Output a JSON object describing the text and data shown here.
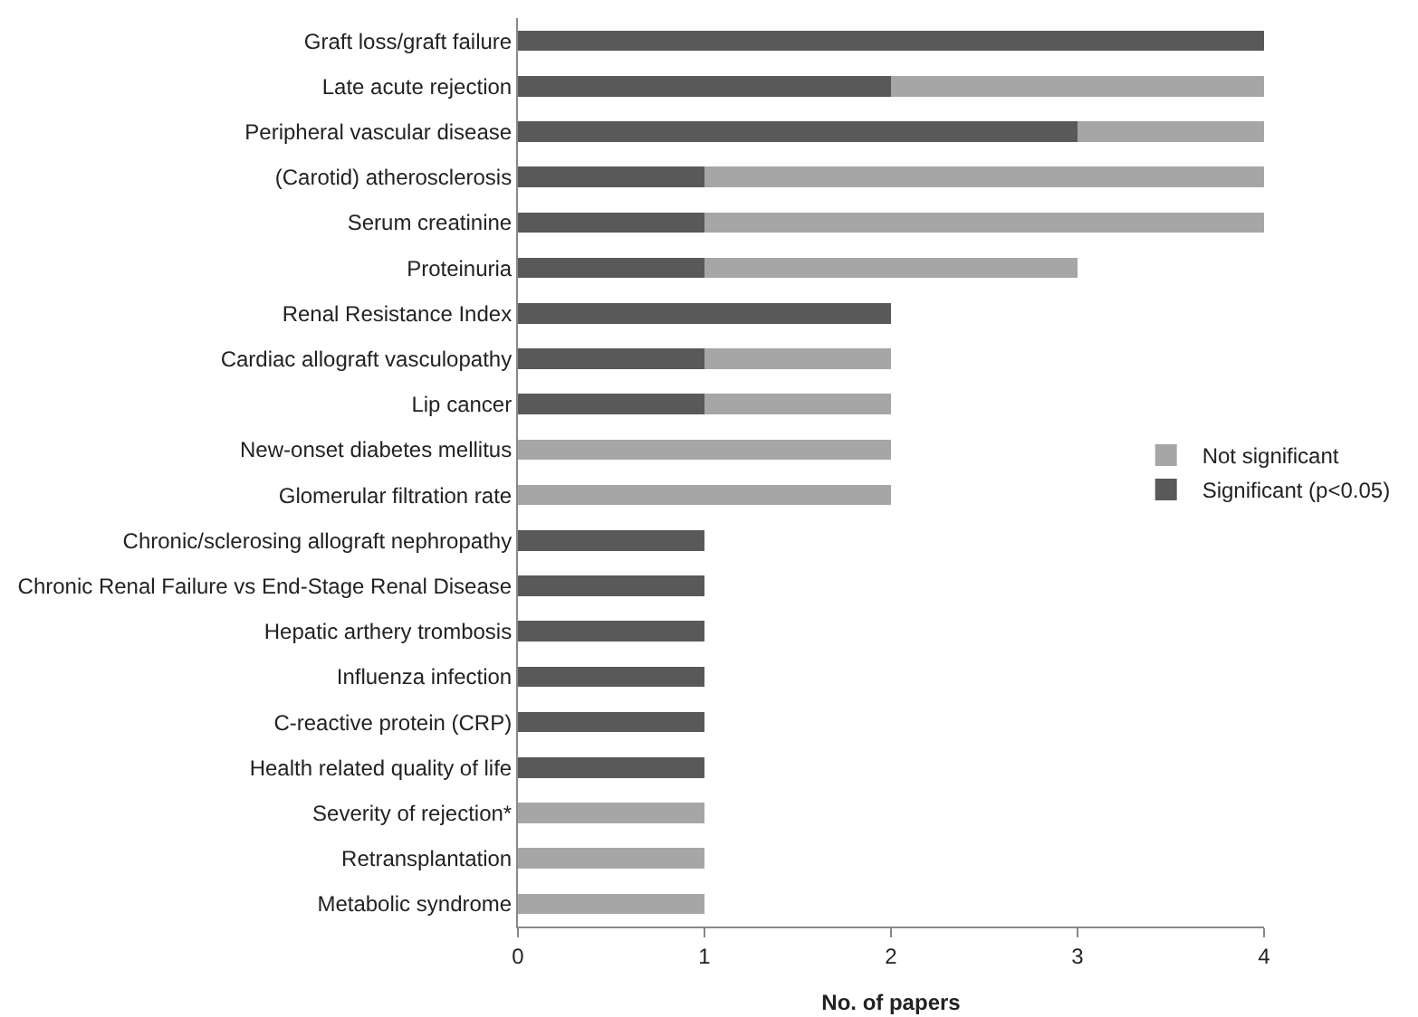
{
  "chart_data": {
    "type": "bar",
    "orientation": "horizontal",
    "stacked": true,
    "xlabel": "No. of papers",
    "categories": [
      "Graft loss/graft failure",
      "Late acute rejection",
      "Peripheral vascular disease",
      "(Carotid) atherosclerosis",
      "Serum creatinine",
      "Proteinuria",
      "Renal Resistance Index",
      "Cardiac allograft vasculopathy",
      "Lip cancer",
      "New-onset diabetes mellitus",
      "Glomerular filtration rate",
      "Chronic/sclerosing allograft nephropathy",
      "Chronic Renal Failure vs End-Stage Renal Disease",
      "Hepatic arthery trombosis",
      "Influenza infection",
      "C-reactive protein (CRP)",
      "Health related quality of life",
      "Severity of rejection*",
      "Retransplantation",
      "Metabolic syndrome"
    ],
    "series": [
      {
        "name": "Significant (p<0.05)",
        "color": "#595959",
        "values": [
          4,
          2,
          3,
          1,
          1,
          1,
          2,
          1,
          1,
          0,
          0,
          1,
          1,
          1,
          1,
          1,
          1,
          0,
          0,
          0
        ]
      },
      {
        "name": "Not significant",
        "color": "#a6a6a6",
        "values": [
          0,
          2,
          1,
          3,
          3,
          2,
          0,
          1,
          1,
          2,
          2,
          0,
          0,
          0,
          0,
          0,
          0,
          1,
          1,
          1
        ]
      }
    ],
    "xlim": [
      0,
      4
    ],
    "xticks": [
      0,
      1,
      2,
      3,
      4
    ],
    "grid": false,
    "legend": "right"
  }
}
